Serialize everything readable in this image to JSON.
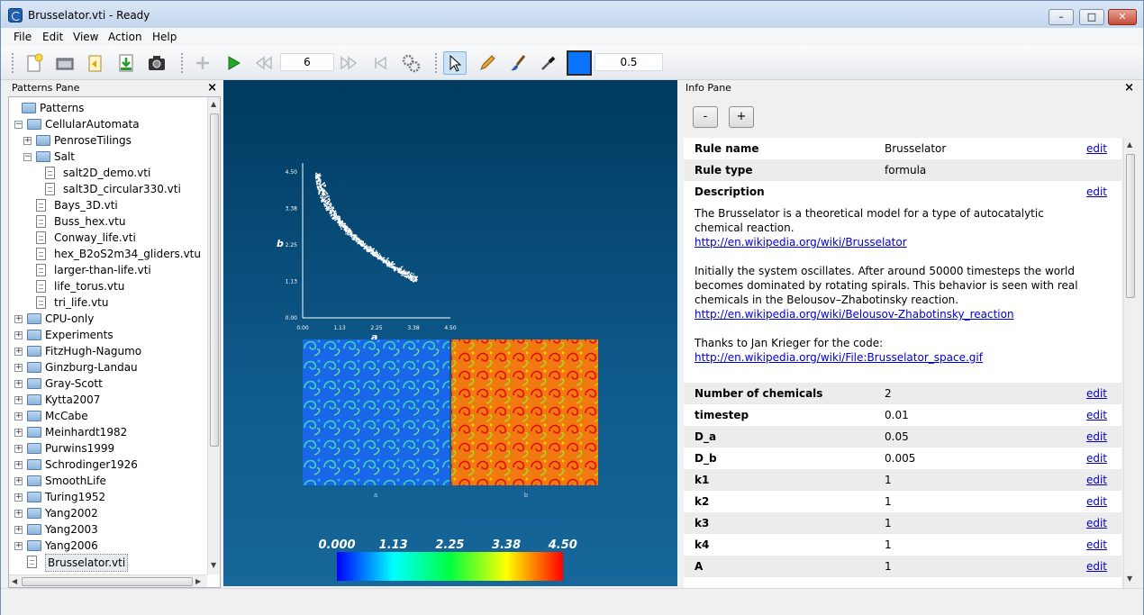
{
  "window": {
    "title": "Brusselator.vti - Ready",
    "minimize": "–",
    "maximize": "□",
    "close": "✕"
  },
  "menu": [
    "File",
    "Edit",
    "View",
    "Action",
    "Help"
  ],
  "toolbar": {
    "timestep_value": "6",
    "brush_value": "0.5",
    "paint_color": "#0a74ff"
  },
  "patterns_pane": {
    "title": "Patterns Pane",
    "close": "×",
    "items": [
      {
        "label": "Patterns",
        "level": 0,
        "type": "folder",
        "expander": ""
      },
      {
        "label": "CellularAutomata",
        "level": 0,
        "type": "folder",
        "expander": "−"
      },
      {
        "label": "PenroseTilings",
        "level": 1,
        "type": "folder",
        "expander": "+"
      },
      {
        "label": "Salt",
        "level": 1,
        "type": "folder",
        "expander": "−"
      },
      {
        "label": "salt2D_demo.vti",
        "level": 2,
        "type": "file",
        "expander": ""
      },
      {
        "label": "salt3D_circular330.vti",
        "level": 2,
        "type": "file",
        "expander": ""
      },
      {
        "label": "Bays_3D.vti",
        "level": 1,
        "type": "file",
        "expander": ""
      },
      {
        "label": "Buss_hex.vtu",
        "level": 1,
        "type": "file",
        "expander": ""
      },
      {
        "label": "Conway_life.vti",
        "level": 1,
        "type": "file",
        "expander": ""
      },
      {
        "label": "hex_B2oS2m34_gliders.vtu",
        "level": 1,
        "type": "file",
        "expander": ""
      },
      {
        "label": "larger-than-life.vti",
        "level": 1,
        "type": "file",
        "expander": ""
      },
      {
        "label": "life_torus.vtu",
        "level": 1,
        "type": "file",
        "expander": ""
      },
      {
        "label": "tri_life.vtu",
        "level": 1,
        "type": "file",
        "expander": ""
      },
      {
        "label": "CPU-only",
        "level": 0,
        "type": "folder",
        "expander": "+"
      },
      {
        "label": "Experiments",
        "level": 0,
        "type": "folder",
        "expander": "+"
      },
      {
        "label": "FitzHugh-Nagumo",
        "level": 0,
        "type": "folder",
        "expander": "+"
      },
      {
        "label": "Ginzburg-Landau",
        "level": 0,
        "type": "folder",
        "expander": "+"
      },
      {
        "label": "Gray-Scott",
        "level": 0,
        "type": "folder",
        "expander": "+"
      },
      {
        "label": "Kytta2007",
        "level": 0,
        "type": "folder",
        "expander": "+"
      },
      {
        "label": "McCabe",
        "level": 0,
        "type": "folder",
        "expander": "+"
      },
      {
        "label": "Meinhardt1982",
        "level": 0,
        "type": "folder",
        "expander": "+"
      },
      {
        "label": "Purwins1999",
        "level": 0,
        "type": "folder",
        "expander": "+"
      },
      {
        "label": "Schrodinger1926",
        "level": 0,
        "type": "folder",
        "expander": "+"
      },
      {
        "label": "SmoothLife",
        "level": 0,
        "type": "folder",
        "expander": "+"
      },
      {
        "label": "Turing1952",
        "level": 0,
        "type": "folder",
        "expander": "+"
      },
      {
        "label": "Yang2002",
        "level": 0,
        "type": "folder",
        "expander": "+"
      },
      {
        "label": "Yang2003",
        "level": 0,
        "type": "folder",
        "expander": "+"
      },
      {
        "label": "Yang2006",
        "level": 0,
        "type": "folder",
        "expander": "+"
      },
      {
        "label": "Brusselator.vti",
        "level": 0,
        "type": "file",
        "expander": "",
        "selected": true
      }
    ]
  },
  "render": {
    "scatter": {
      "xlabel": "a",
      "ylabel": "b",
      "xticks": [
        "0.00",
        "1.13",
        "2.25",
        "3.38",
        "4.50"
      ],
      "yticks": [
        "0.00",
        "1.13",
        "2.25",
        "3.38",
        "4.50"
      ]
    },
    "panel_labels": [
      "a",
      "b"
    ],
    "colorbar_ticks": [
      "0.000",
      "1.13",
      "2.25",
      "3.38",
      "4.50"
    ]
  },
  "info_pane": {
    "title": "Info Pane",
    "close": "×",
    "minus": "-",
    "plus": "+",
    "edit_label": "edit",
    "rule_name": {
      "key": "Rule name",
      "value": "Brusselator"
    },
    "rule_type": {
      "key": "Rule type",
      "value": "formula"
    },
    "description": {
      "key": "Description",
      "para1": "The Brusselator is a theoretical model for a type of autocatalytic chemical reaction.",
      "link1": "http://en.wikipedia.org/wiki/Brusselator",
      "para2": "Initially the system oscillates. After around 50000 timesteps the world becomes dominated by rotating spirals. This behavior is seen with real chemicals in the Belousov–Zhabotinsky reaction.",
      "link2": "http://en.wikipedia.org/wiki/Belousov-Zhabotinsky_reaction",
      "para3": "Thanks to Jan Krieger for the code:",
      "link3": "http://en.wikipedia.org/wiki/File:Brusselator_space.gif"
    },
    "params": [
      {
        "key": "Number of chemicals",
        "value": "2"
      },
      {
        "key": "timestep",
        "value": "0.01"
      },
      {
        "key": "D_a",
        "value": "0.05"
      },
      {
        "key": "D_b",
        "value": "0.005"
      },
      {
        "key": "k1",
        "value": "1"
      },
      {
        "key": "k2",
        "value": "1"
      },
      {
        "key": "k3",
        "value": "1"
      },
      {
        "key": "k4",
        "value": "1"
      },
      {
        "key": "A",
        "value": "1"
      }
    ]
  }
}
